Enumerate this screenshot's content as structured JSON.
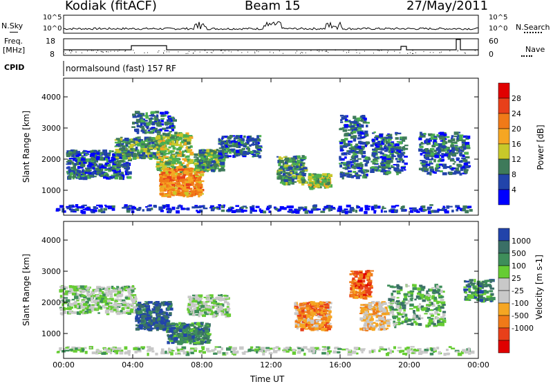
{
  "header": {
    "station": "Kodiak (fitACF)",
    "beam": "Beam 15",
    "date": "27/May/2011"
  },
  "left_labels": {
    "nsky": "N.Sky",
    "freq": "Freq.",
    "mhz": "[MHz]",
    "cpid": "CPID"
  },
  "right_labels": {
    "nsearch": "N.Search",
    "nave": "Nave"
  },
  "noise_axis": {
    "top": "10^5",
    "bottom": "10^0"
  },
  "freq_axis": {
    "top": "18",
    "bottom": "8"
  },
  "nave_axis": {
    "top": "60",
    "bottom": "0"
  },
  "cpid_text": "normalsound (fast) 157 RF",
  "colors": {
    "power": [
      "#0000ff",
      "#2244aa",
      "#3e7a5a",
      "#4caf50",
      "#c8c82a",
      "#f5a623",
      "#f07a18",
      "#e8401a",
      "#e00000"
    ],
    "velocity": [
      "#2244aa",
      "#3a6f66",
      "#3e8e5a",
      "#66cc33",
      "#c8c8c8",
      "#c8c8c8",
      "#f5a623",
      "#f07a18",
      "#e8401a",
      "#e00000"
    ]
  },
  "chart_data": [
    {
      "type": "heatmap",
      "panel": "power",
      "ylabel": "Slant Range [km]",
      "yticks": [
        "1000",
        "2000",
        "3000",
        "4000"
      ],
      "ylim": [
        200,
        4600
      ],
      "xlim": [
        "00:00",
        "24:00"
      ],
      "colorbar_label": "Power [dB]",
      "colorbar_ticks": [
        "4",
        "8",
        "12",
        "16",
        "20",
        "24",
        "28"
      ]
    },
    {
      "type": "heatmap",
      "panel": "velocity",
      "ylabel": "Slant Range [km]",
      "yticks": [
        "1000",
        "2000",
        "3000",
        "4000"
      ],
      "ylim": [
        200,
        4600
      ],
      "xlabel": "Time UT",
      "xticks": [
        "00:00",
        "04:00",
        "08:00",
        "12:00",
        "16:00",
        "20:00",
        "00:00"
      ],
      "colorbar_label": "Velocity [m s-1]",
      "colorbar_ticks": [
        "1000",
        "500",
        "100",
        "25",
        "-25",
        "-100",
        "-500",
        "-1000"
      ]
    }
  ]
}
